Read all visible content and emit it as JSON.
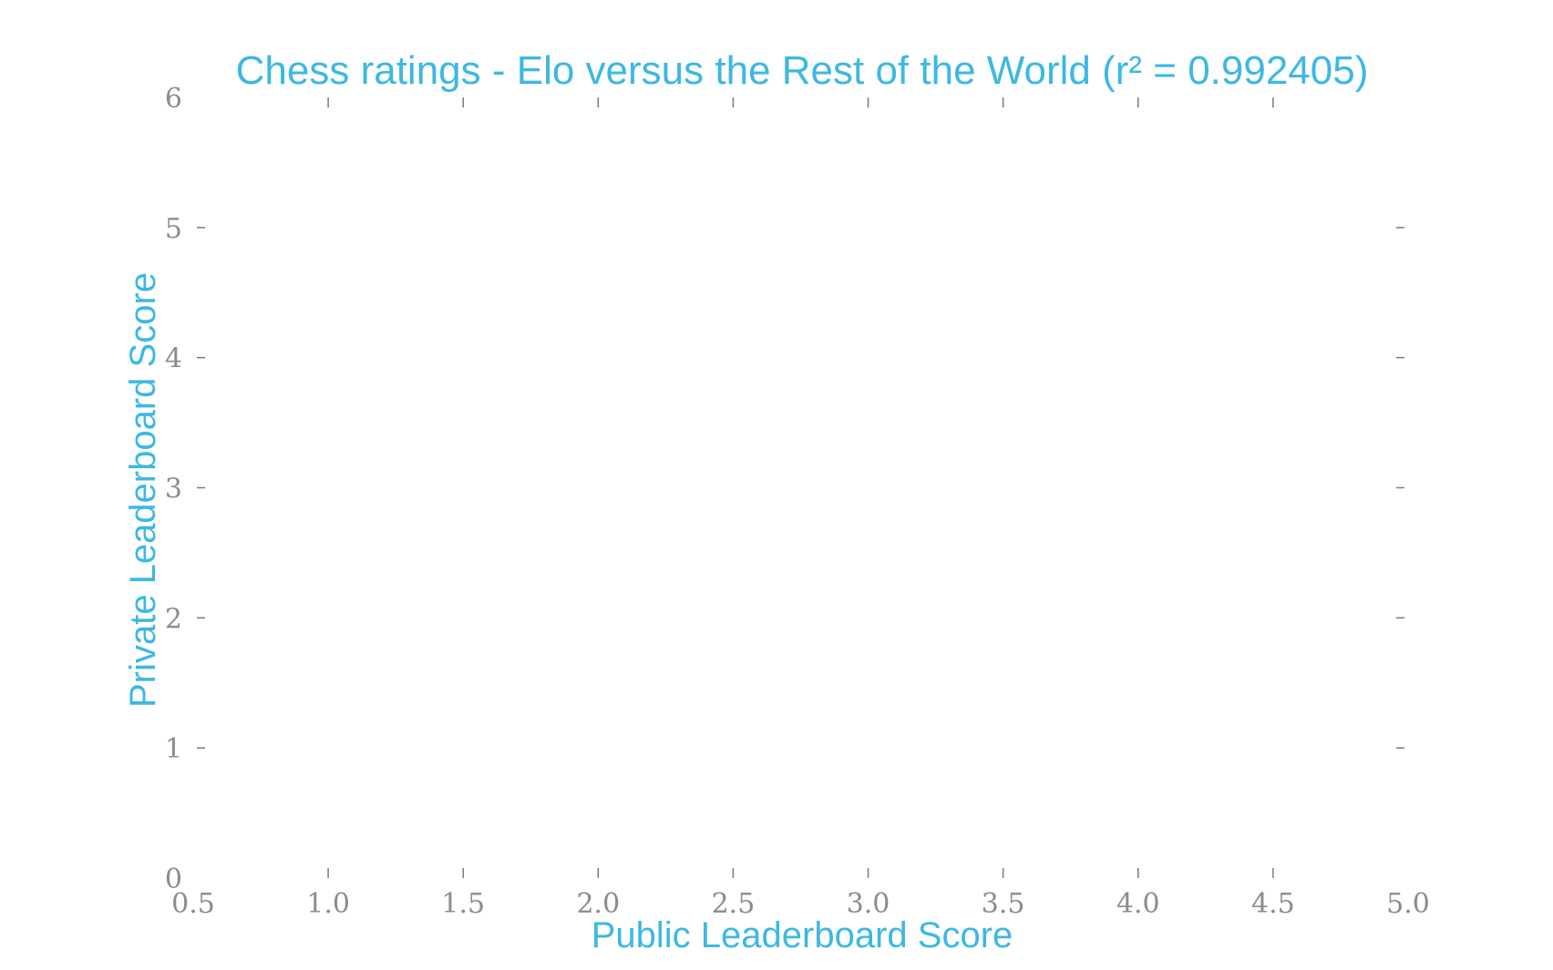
{
  "colors": {
    "accent": "#3db8e2",
    "tick_text": "#8c8c8c",
    "tick_mark": "#7a7a7a",
    "background": "#ffffff"
  },
  "chart_data": {
    "type": "scatter",
    "title": "Chess ratings - Elo versus the Rest of the World (r² = 0.992405)",
    "xlabel": "Public Leaderboard Score",
    "ylabel": "Private Leaderboard Score",
    "xlim": [
      0.5,
      5.0
    ],
    "ylim": [
      0,
      6
    ],
    "x_ticks": [
      "0.5",
      "1.0",
      "1.5",
      "2.0",
      "2.5",
      "3.0",
      "3.5",
      "4.0",
      "4.5",
      "5.0"
    ],
    "y_ticks": [
      "0",
      "1",
      "2",
      "3",
      "4",
      "5",
      "6"
    ],
    "grid": false,
    "series": []
  }
}
